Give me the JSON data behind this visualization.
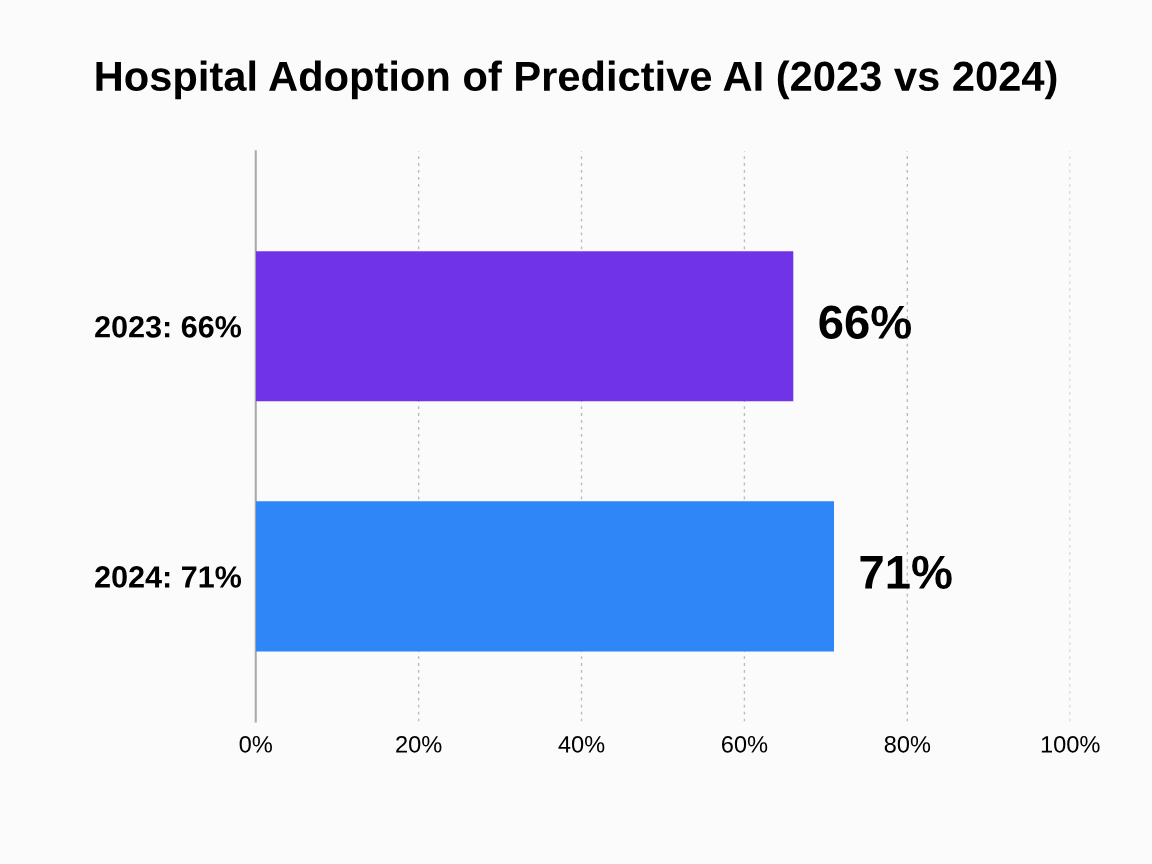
{
  "chart_data": {
    "type": "bar",
    "orientation": "horizontal",
    "title": "Hospital Adoption of Predictive AI (2023 vs 2024)",
    "categories": [
      "2023: 66%",
      "2024: 71%"
    ],
    "values": [
      66,
      71
    ],
    "colors": [
      "#7033e8",
      "#2f86f6"
    ],
    "xlim": [
      0,
      100
    ],
    "xticks": [
      {
        "value": 0,
        "label": "0%"
      },
      {
        "value": 20,
        "label": "20%"
      },
      {
        "value": 40,
        "label": "40%"
      },
      {
        "value": 60,
        "label": "60%"
      },
      {
        "value": 80,
        "label": "80%"
      },
      {
        "value": 100,
        "label": "100%"
      }
    ],
    "value_labels": [
      "66%",
      "71%"
    ],
    "grid": "x"
  }
}
